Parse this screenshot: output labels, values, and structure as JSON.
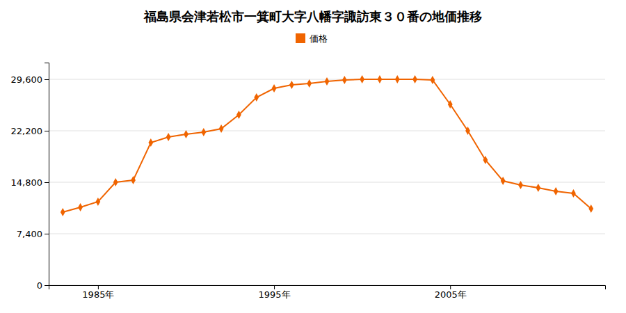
{
  "chart_data": {
    "type": "line",
    "title": "福島県会津若松市一箕町大字八幡字諏訪東３０番の地価推移",
    "x": [
      1983,
      1984,
      1985,
      1986,
      1987,
      1988,
      1989,
      1990,
      1991,
      1992,
      1993,
      1994,
      1995,
      1996,
      1997,
      1998,
      1999,
      2000,
      2001,
      2002,
      2003,
      2004,
      2005,
      2006,
      2007,
      2008,
      2009,
      2010,
      2011,
      2012,
      2013
    ],
    "series": [
      {
        "name": "価格",
        "color": "#f06400",
        "marker": "diamond",
        "line_style": "solid",
        "values": [
          10500,
          11200,
          12000,
          14800,
          15100,
          20500,
          21300,
          21700,
          22000,
          22500,
          24500,
          27000,
          28300,
          28800,
          29000,
          29300,
          29500,
          29600,
          29600,
          29600,
          29600,
          29500,
          26000,
          22200,
          18000,
          15000,
          14400,
          14000,
          13500,
          13200,
          11000
        ]
      }
    ],
    "xlim": [
      1982.2,
      2013.8
    ],
    "xticks": [
      {
        "value": 1985,
        "label": "1985年"
      },
      {
        "value": 1995,
        "label": "1995年"
      },
      {
        "value": 2005,
        "label": "2005年"
      }
    ],
    "ylim": [
      0,
      32000
    ],
    "yticks": [
      0,
      {
        "value": 7400,
        "label": "7,400"
      },
      {
        "value": 14800,
        "label": "14,800"
      },
      {
        "value": 22200,
        "label": "22,200"
      },
      {
        "value": 29600,
        "label": "29,600"
      }
    ],
    "grid": true,
    "legend": "top"
  }
}
